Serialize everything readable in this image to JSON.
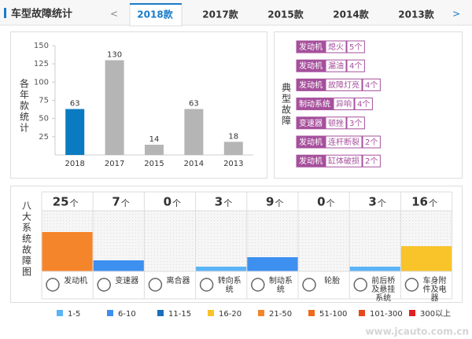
{
  "header": {
    "title": "车型故障统计",
    "prev": "<",
    "next": ">",
    "tabs": [
      "2018款",
      "2017款",
      "2015款",
      "2014款",
      "2013款"
    ],
    "active_tab": 0
  },
  "chart_data": {
    "type": "bar",
    "y_label": "各年款统计",
    "categories": [
      "2018",
      "2017",
      "2015",
      "2014",
      "2013"
    ],
    "values": [
      63,
      130,
      14,
      63,
      18
    ],
    "colors": [
      "#0a7bc1",
      "#b5b5b5",
      "#b5b5b5",
      "#b5b5b5",
      "#b5b5b5"
    ],
    "ylim": [
      0,
      150
    ],
    "yticks": [
      25,
      50,
      75,
      100,
      125,
      150
    ],
    "grid": false
  },
  "faults": {
    "label": "典型故障",
    "items": [
      {
        "system": "发动机",
        "fault": "熄火",
        "count": "5个"
      },
      {
        "system": "发动机",
        "fault": "漏油",
        "count": "4个"
      },
      {
        "system": "发动机",
        "fault": "故障灯亮",
        "count": "4个"
      },
      {
        "system": "制动系统",
        "fault": "异响",
        "count": "4个"
      },
      {
        "system": "变速器",
        "fault": "顿挫",
        "count": "3个"
      },
      {
        "system": "发动机",
        "fault": "连杆断裂",
        "count": "2个"
      },
      {
        "system": "发动机",
        "fault": "缸体破损",
        "count": "2个"
      }
    ]
  },
  "systems": {
    "label": "八大系统故障图",
    "unit": "个",
    "items": [
      {
        "name": "发动机",
        "count": 25,
        "color": "#f5852a"
      },
      {
        "name": "变速器",
        "count": 7,
        "color": "#3d8ff0"
      },
      {
        "name": "离合器",
        "count": 0,
        "color": "#5bb4f5"
      },
      {
        "name": "转向系统",
        "count": 3,
        "color": "#5bb4f5"
      },
      {
        "name": "制动系统",
        "count": 9,
        "color": "#3d8ff0"
      },
      {
        "name": "轮胎",
        "count": 0,
        "color": "#5bb4f5"
      },
      {
        "name": "前后桥及悬挂系统",
        "count": 3,
        "color": "#5bb4f5"
      },
      {
        "name": "车身附件及电器",
        "count": 16,
        "color": "#f8c42a"
      }
    ]
  },
  "legend": [
    {
      "label": "1-5",
      "color": "#5bb4f5"
    },
    {
      "label": "6-10",
      "color": "#3d8ff0"
    },
    {
      "label": "11-15",
      "color": "#1a6fb8"
    },
    {
      "label": "16-20",
      "color": "#f8c42a"
    },
    {
      "label": "21-50",
      "color": "#f5852a"
    },
    {
      "label": "51-100",
      "color": "#ee6a1c"
    },
    {
      "label": "101-300",
      "color": "#e8471c"
    },
    {
      "label": "300以上",
      "color": "#e02020"
    }
  ],
  "watermark": "www.jcauto.com.cn"
}
